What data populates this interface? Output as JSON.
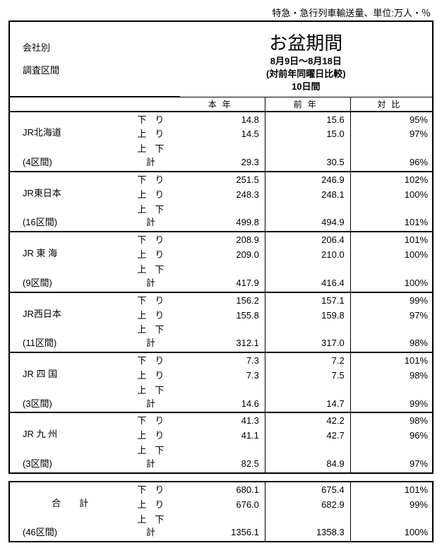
{
  "unit_label": "特急・急行列車輸送量、単位:万人・％",
  "header": {
    "left_line1": "会社別",
    "left_line2": "調査区間",
    "title": "お盆期間",
    "dates": "8月9日～8月18日",
    "compare": "(対前年同曜日比較)",
    "days": "10日間",
    "col_this": "本年",
    "col_prev": "前年",
    "col_ratio": "対比"
  },
  "dir_labels": {
    "down": "下り",
    "up": "上り",
    "total": "上下計"
  },
  "companies": [
    {
      "name": "JR北海道",
      "sections": "(4区間)",
      "down": [
        "14.8",
        "15.6",
        "95%"
      ],
      "up": [
        "14.5",
        "15.0",
        "97%"
      ],
      "total": [
        "29.3",
        "30.5",
        "96%"
      ]
    },
    {
      "name": "JR東日本",
      "sections": "(16区間)",
      "down": [
        "251.5",
        "246.9",
        "102%"
      ],
      "up": [
        "248.3",
        "248.1",
        "100%"
      ],
      "total": [
        "499.8",
        "494.9",
        "101%"
      ]
    },
    {
      "name": "JR 東 海",
      "sections": "(9区間)",
      "down": [
        "208.9",
        "206.4",
        "101%"
      ],
      "up": [
        "209.0",
        "210.0",
        "100%"
      ],
      "total": [
        "417.9",
        "416.4",
        "100%"
      ]
    },
    {
      "name": "JR西日本",
      "sections": "(11区間)",
      "down": [
        "156.2",
        "157.1",
        "99%"
      ],
      "up": [
        "155.8",
        "159.8",
        "97%"
      ],
      "total": [
        "312.1",
        "317.0",
        "98%"
      ]
    },
    {
      "name": "JR 四 国",
      "sections": "(3区間)",
      "down": [
        "7.3",
        "7.2",
        "101%"
      ],
      "up": [
        "7.3",
        "7.5",
        "98%"
      ],
      "total": [
        "14.6",
        "14.7",
        "99%"
      ]
    },
    {
      "name": "JR 九 州",
      "sections": "(3区間)",
      "down": [
        "41.3",
        "42.2",
        "98%"
      ],
      "up": [
        "41.1",
        "42.7",
        "96%"
      ],
      "total": [
        "82.5",
        "84.9",
        "97%"
      ]
    }
  ],
  "grand": {
    "name": "合　　計",
    "sections": "(46区間)",
    "down": [
      "680.1",
      "675.4",
      "101%"
    ],
    "up": [
      "676.0",
      "682.9",
      "99%"
    ],
    "total": [
      "1356.1",
      "1358.3",
      "100%"
    ]
  }
}
